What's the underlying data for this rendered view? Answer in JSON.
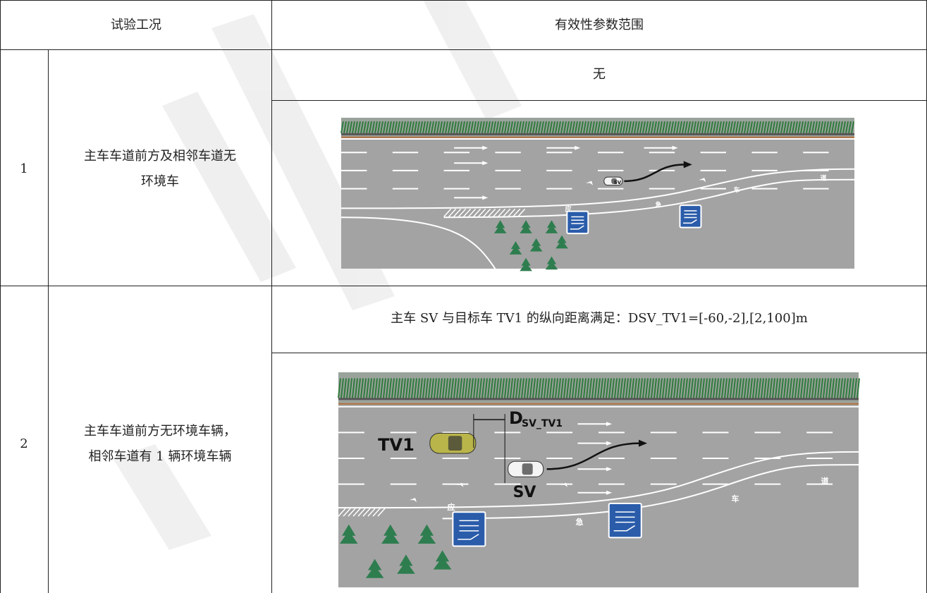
{
  "header": {
    "col1": "试验工况",
    "col2": "有效性参数范围"
  },
  "rows": [
    {
      "number": "1",
      "condition": [
        "主车车道前方及相邻车道无",
        "环境车"
      ],
      "parameter": "无",
      "diagram": {
        "sv": "SV",
        "road_marks": [
          "应",
          "急",
          "车",
          "道"
        ]
      }
    },
    {
      "number": "2",
      "condition": [
        "主车车道前方无环境车辆，",
        "相邻车道有 1 辆环境车辆"
      ],
      "parameter": "主车 SV 与目标车 TV1 的纵向距离满足：DSV_TV1=[-60,-2],[2,100]m",
      "diagram": {
        "tv1": "TV1",
        "distance": "D",
        "distance_sub": "SV_TV1",
        "sv": "SV",
        "road_marks": [
          "应",
          "急",
          "车",
          "道"
        ]
      }
    }
  ]
}
